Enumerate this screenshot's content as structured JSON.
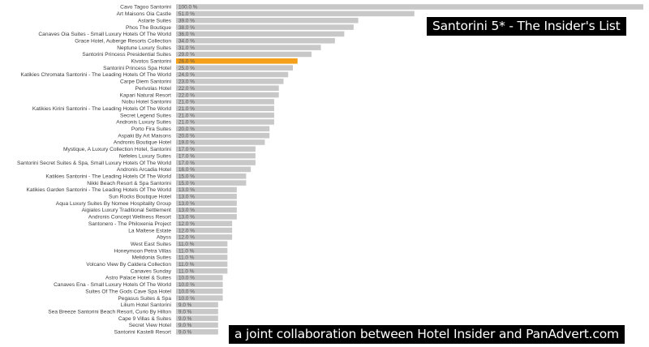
{
  "overlay": {
    "title": "Santorini 5* - The Insider's List",
    "credit": "a joint collaboration between Hotel Insider and PanAdvert.com"
  },
  "colors": {
    "bar": "#c8c8c8",
    "highlight": "#f5a01a"
  },
  "chart_data": {
    "type": "bar",
    "orientation": "horizontal",
    "xlim": [
      0,
      100
    ],
    "value_suffix": " %",
    "highlight_category": "Kivotos Santorini",
    "categories": [
      "Cavo Tagoo Santorini",
      "Art Maisons Oia Castle",
      "Astarte Suites",
      "Phos The Boutique",
      "Canaves Oia Suites - Small Luxury Hotels Of The World",
      "Grace Hotel, Auberge Resorts Collection",
      "Neptune Luxury Suites",
      "Santorini Princess Presidential Suites",
      "Kivotos Santorini",
      "Santorini Princess Spa Hotel",
      "Katikies Chromata Santorini - The Leading Hotels Of The World",
      "Carpe Diem Santorini",
      "Perivolas Hotel",
      "Kapari Natural Resort",
      "Nobu Hotel Santorini",
      "Katikies Kirini Santorini - The Leading Hotels Of The World",
      "Secret Legend Suites",
      "Andronis Luxury Suites",
      "Porto Fira Suites",
      "Aspaki By Art Maisons",
      "Andronis Boutique Hotel",
      "Mystique, A Luxury Collection Hotel, Santorini",
      "Nefeles Luxury Suites",
      "Santorini Secret Suites & Spa, Small Luxury Hotels Of The World",
      "Andronis Arcadia Hotel",
      "Katikies Santorini - The Leading Hotels Of The World",
      "Nikki Beach Resort & Spa Santorini",
      "Katikies Garden Santorini - The Leading Hotels Of The World",
      "Sun Rocks Boutique Hotel",
      "Aqua Luxury Suites By Nomee Hospitality Group",
      "Aigialos Luxury Traditional Settlement",
      "Andronis Concept Wellness Resort",
      "Santonero - The Philoxenia Project",
      "La Maltese Estate",
      "Abyss",
      "West East Suites",
      "Honeymoon Petra Villas",
      "Melidonia Suites",
      "Volcano View By Caldera Collection",
      "Canaves Sunday",
      "Astro Palace Hotel & Suites",
      "Canaves Ena - Small Luxury Hotels Of The World",
      "Suites Of The Gods Cave Spa Hotel",
      "Pegasus Suites & Spa",
      "Lilium Hotel Santorini",
      "Sea Breeze Santorini Beach Resort, Curio By Hilton",
      "Cape 9 Villas & Suites",
      "Secret View Hotel",
      "Santorini Kastelli Resort"
    ],
    "values": [
      100,
      51,
      39,
      38,
      36,
      34,
      31,
      29,
      26,
      25,
      24,
      23,
      22,
      22,
      21,
      21,
      21,
      21,
      20,
      20,
      19,
      17,
      17,
      17,
      16,
      15,
      15,
      13,
      13,
      13,
      13,
      13,
      12,
      12,
      12,
      11,
      11,
      11,
      11,
      11,
      10,
      10,
      10,
      10,
      9,
      9,
      9,
      9,
      9
    ],
    "value_labels": [
      "100.0 %",
      "51.0 %",
      "39.0 %",
      "38.0 %",
      "36.0 %",
      "34.0 %",
      "31.0 %",
      "29.0 %",
      "26.0 %",
      "25.0 %",
      "24.0 %",
      "23.0 %",
      "22.0 %",
      "22.0 %",
      "21.0 %",
      "21.0 %",
      "21.0 %",
      "21.0 %",
      "20.0 %",
      "20.0 %",
      "19.0 %",
      "17.0 %",
      "17.0 %",
      "17.0 %",
      "16.0 %",
      "15.0 %",
      "15.0 %",
      "13.0 %",
      "13.0 %",
      "13.0 %",
      "13.0 %",
      "13.0 %",
      "12.0 %",
      "12.0 %",
      "12.0 %",
      "11.0 %",
      "11.0 %",
      "11.0 %",
      "11.0 %",
      "11.0 %",
      "10.0 %",
      "10.0 %",
      "10.0 %",
      "10.0 %",
      "9.0 %",
      "9.0 %",
      "9.0 %",
      "9.0 %",
      "9.0 %"
    ]
  }
}
